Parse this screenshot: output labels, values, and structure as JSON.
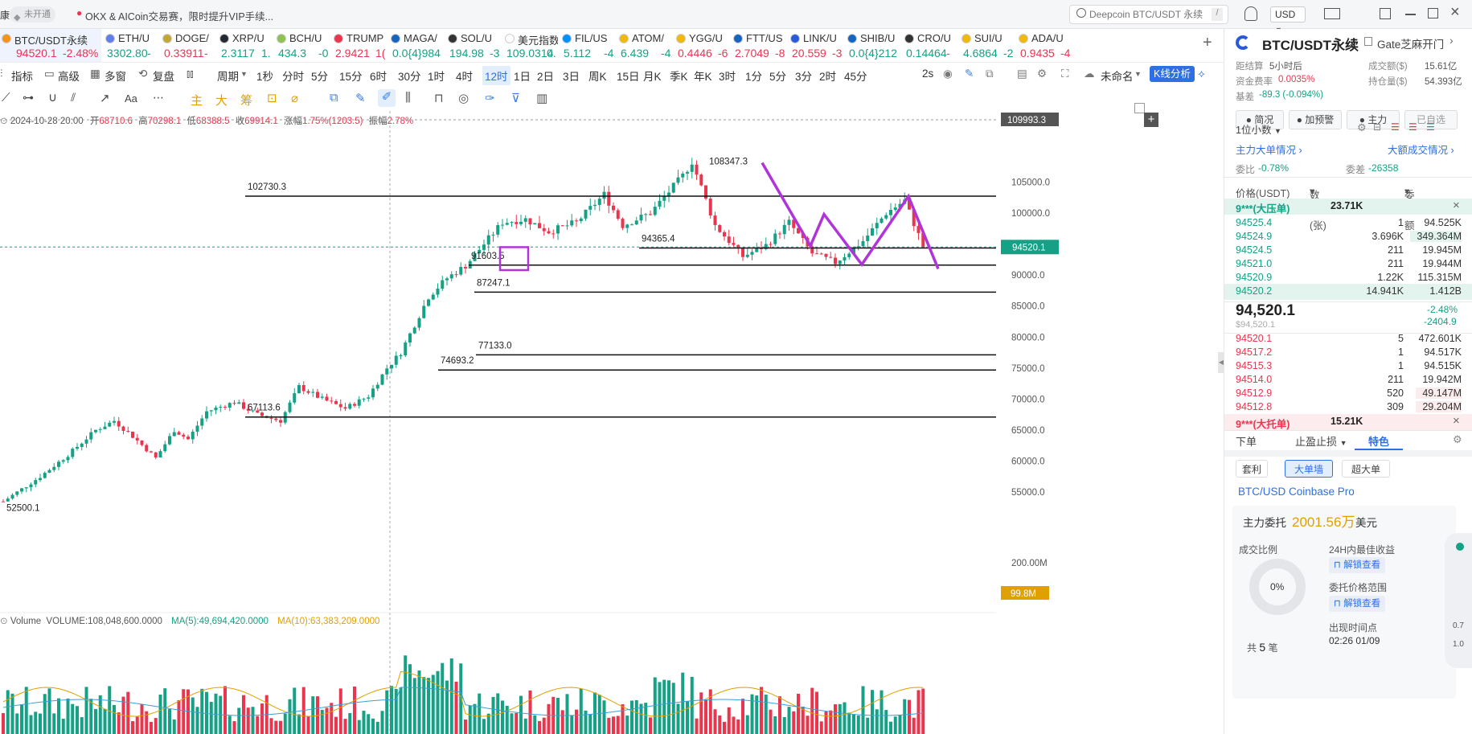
{
  "titlebar": {
    "left_edge": "康",
    "badge": "未开通",
    "promo": "OKX & AICoin交易赛，限时提升VIP手续...",
    "search_placeholder": "Deepcoin BTC/USDT 永续",
    "search_shortcut": "/",
    "currency": "USD"
  },
  "tickers": [
    {
      "name": "BTC/USDT永续",
      "price": "94520.1",
      "change": "-2.48%",
      "dir": "dn",
      "color": "#f7931a"
    },
    {
      "name": "ETH/U",
      "price": "3302.80",
      "change": "-",
      "dir": "up",
      "color": "#627eea"
    },
    {
      "name": "DOGE/",
      "price": "0.33911",
      "change": "-",
      "dir": "dn",
      "color": "#c2a633"
    },
    {
      "name": "XRP/U",
      "price": "2.3117",
      "change": "1.",
      "dir": "up",
      "color": "#23292f"
    },
    {
      "name": "BCH/U",
      "price": "434.3",
      "change": "-0.",
      "dir": "up",
      "color": "#8dc351"
    },
    {
      "name": "TRUMP",
      "price": "2.9421",
      "change": "1(",
      "dir": "dn",
      "color": "#e8364f"
    },
    {
      "name": "MAGA/",
      "price": "0.0{4}984",
      "change": "",
      "dir": "up",
      "color": "#1565c0"
    },
    {
      "name": "SOL/U",
      "price": "194.98",
      "change": "-3",
      "dir": "up",
      "color": "#333333"
    },
    {
      "name": "美元指数",
      "price": "109.0314",
      "change": "0.",
      "dir": "up",
      "color": "#ffffff"
    },
    {
      "name": "FIL/US",
      "price": "5.112",
      "change": "-4.",
      "dir": "up",
      "color": "#0090ff"
    },
    {
      "name": "ATOM/",
      "price": "6.439",
      "change": "-4.",
      "dir": "up",
      "color": "#f0b90b"
    },
    {
      "name": "YGG/U",
      "price": "0.4446",
      "change": "-6",
      "dir": "dn",
      "color": "#f0b90b"
    },
    {
      "name": "FTT/US",
      "price": "2.7049",
      "change": "-8",
      "dir": "dn",
      "color": "#1565c0"
    },
    {
      "name": "LINK/U",
      "price": "20.559",
      "change": "-3",
      "dir": "dn",
      "color": "#2a5ada"
    },
    {
      "name": "SHIB/U",
      "price": "0.0{4}212",
      "change": "",
      "dir": "up",
      "color": "#1565c0"
    },
    {
      "name": "CRO/U",
      "price": "0.14464",
      "change": "-",
      "dir": "up",
      "color": "#333333"
    },
    {
      "name": "SUI/U",
      "price": "4.6864",
      "change": "-2",
      "dir": "up",
      "color": "#f0b90b"
    },
    {
      "name": "ADA/U",
      "price": "0.9435",
      "change": "-4",
      "dir": "dn",
      "color": "#f0b90b"
    }
  ],
  "toolbar1": {
    "indicator": "指标",
    "advanced": "高级",
    "multi": "多窗",
    "replay": "复盘",
    "period": "周期",
    "intervals": [
      "1秒",
      "分时",
      "5分",
      "15分",
      "6时",
      "30分",
      "1时",
      "4时",
      "12时",
      "1日",
      "2日",
      "3日",
      "周K",
      "15日",
      "月K",
      "季K",
      "年K",
      "3时",
      "1分",
      "5分",
      "3分",
      "2时",
      "45分"
    ],
    "active_interval": "12时",
    "refresh": "2s",
    "layout_name": "未命名",
    "analysis": "K线分析"
  },
  "toolbar2": {
    "labels": [
      "主",
      "大",
      "筹"
    ]
  },
  "ohlc": {
    "date": "2024-10-28 20:00",
    "open_l": "开",
    "open": "68710.6",
    "high_l": "高",
    "high": "70298.1",
    "low_l": "低",
    "low": "68388.5",
    "close_l": "收",
    "close": "69914.1",
    "chg_l": "涨幅",
    "chg": "1.75%(1203.5)",
    "amp_l": "振幅",
    "amp": "2.78%"
  },
  "chart_data": {
    "type": "candlestick",
    "y_ticks": [
      55000,
      60000,
      65000,
      70000,
      75000,
      80000,
      85000,
      90000,
      95000,
      100000,
      105000
    ],
    "y_tick_labels": [
      "55000.0",
      "60000.0",
      "65000.0",
      "70000.0",
      "75000.0",
      "80000.0",
      "85000.0",
      "90000.0",
      "95000.0",
      "100000.0",
      "105000.0"
    ],
    "ylim": [
      47500,
      110500
    ],
    "crosshair_value": "109993.3",
    "last_price": "94520.1",
    "levels": [
      {
        "value": 102730.3,
        "label": "102730.3"
      },
      {
        "value": 94365.4,
        "label": "94365.4"
      },
      {
        "value": 91603.5,
        "label": "91603.5"
      },
      {
        "value": 87247.1,
        "label": "87247.1"
      },
      {
        "value": 77133.0,
        "label": "77133.0"
      },
      {
        "value": 74693.2,
        "label": "74693.2"
      },
      {
        "value": 67113.6,
        "label": "67113.6"
      }
    ],
    "high_marker": {
      "value": 108347.3,
      "label": "108347.3"
    },
    "low_marker": {
      "value": 52500.1,
      "label": "52500.1"
    },
    "anchors": [
      [
        0,
        53500
      ],
      [
        8,
        57500
      ],
      [
        14,
        61000
      ],
      [
        20,
        65000
      ],
      [
        24,
        66500
      ],
      [
        28,
        64000
      ],
      [
        33,
        60500
      ],
      [
        37,
        65000
      ],
      [
        40,
        63500
      ],
      [
        44,
        68000
      ],
      [
        50,
        69500
      ],
      [
        55,
        67500
      ],
      [
        60,
        66500
      ],
      [
        64,
        72000
      ],
      [
        69,
        70000
      ],
      [
        74,
        68500
      ],
      [
        79,
        70500
      ],
      [
        83,
        75000
      ],
      [
        86,
        77500
      ],
      [
        92,
        86500
      ],
      [
        96,
        89500
      ],
      [
        100,
        91500
      ],
      [
        104,
        95000
      ],
      [
        108,
        98500
      ],
      [
        113,
        99000
      ],
      [
        118,
        97000
      ],
      [
        124,
        98500
      ],
      [
        130,
        103000
      ],
      [
        134,
        98000
      ],
      [
        140,
        100000
      ],
      [
        147,
        106000
      ],
      [
        149,
        108300
      ],
      [
        154,
        98000
      ],
      [
        160,
        93000
      ],
      [
        165,
        94800
      ],
      [
        170,
        98500
      ],
      [
        175,
        93500
      ],
      [
        180,
        92000
      ],
      [
        186,
        95500
      ],
      [
        191,
        100000
      ],
      [
        195,
        102000
      ],
      [
        198,
        96500
      ],
      [
        199,
        94520
      ]
    ],
    "volume": {
      "label": "Volume",
      "value_text": "VOLUME:108,048,600.0000",
      "ma5_text": "MA(5):49,694,420.0000",
      "ma10_text": "MA(10):63,383,209.0000",
      "tick_label": "200.00M",
      "current_label": "99.8M"
    }
  },
  "right": {
    "title": "BTC/USDT永续",
    "exchange": "Gate芝麻开门",
    "countdown_l": "距结算",
    "countdown": "5小时后",
    "volume_l": "成交额($)",
    "volume": "15.61亿",
    "funding_l": "资金费率",
    "funding": "0.0035%",
    "oi_l": "持仓量($)",
    "oi": "54.393亿",
    "basis_l": "基差",
    "basis": "-89.3 (-0.094%)",
    "tabs": [
      "简况",
      "加预警",
      "主力",
      "已自选"
    ],
    "precision": "1位小数",
    "big_order_title": "主力大单情况",
    "big_trade_title": "大额成交情况",
    "ratio_l": "委比",
    "ratio": "-0.78%",
    "diff_l": "委差",
    "diff": "-26358",
    "col_price": "价格(USDT)",
    "col_qty": "数量 (张)",
    "col_amt": "委托额",
    "big_ask_l": "9***(大压单)",
    "big_ask": "23.71K",
    "asks": [
      [
        "94525.4",
        "1",
        "94.525K"
      ],
      [
        "94524.9",
        "3.696K",
        "349.364M"
      ],
      [
        "94524.5",
        "211",
        "19.945M"
      ],
      [
        "94521.0",
        "211",
        "19.944M"
      ],
      [
        "94520.9",
        "1.22K",
        "115.315M"
      ],
      [
        "94520.2",
        "14.941K",
        "1.412B"
      ]
    ],
    "last": "94,520.1",
    "last_usd": "$94,520.1",
    "last_chg": "-2.48%",
    "last_chg_abs": "-2404.9",
    "bids": [
      [
        "94520.1",
        "5",
        "472.601K"
      ],
      [
        "94517.2",
        "1",
        "94.517K"
      ],
      [
        "94515.3",
        "1",
        "94.515K"
      ],
      [
        "94514.0",
        "211",
        "19.942M"
      ],
      [
        "94512.9",
        "520",
        "49.147M"
      ],
      [
        "94512.8",
        "309",
        "29.204M"
      ]
    ],
    "big_bid_l": "9***(大托单)",
    "big_bid": "15.21K",
    "bottom_tabs": [
      "下单",
      "止盈止损",
      "特色"
    ],
    "chips": [
      "套利",
      "大单墙",
      "超大单"
    ],
    "source": "BTC/USD Coinbase Pro",
    "main_order_l": "主力委托",
    "main_order": "2001.56万",
    "main_order_unit": "美元",
    "deal_ratio_l": "成交比例",
    "deal_ratio": "0%",
    "best_l": "24H内最佳收益",
    "unlock": "解锁查看",
    "range_l": "委托价格范围",
    "appear_l": "出现时间点",
    "appear": "02:26 01/09",
    "count_l": "共",
    "count": "5",
    "count_unit": "笔",
    "side_a": "0.7",
    "side_b": "1.0"
  }
}
